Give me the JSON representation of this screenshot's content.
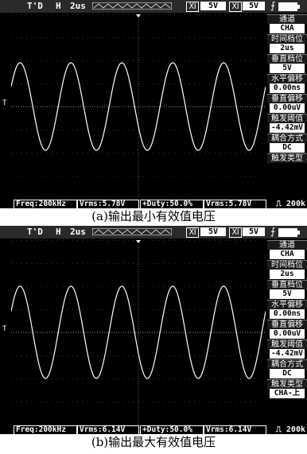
{
  "panels": [
    {
      "topbar": {
        "mode": "T'D",
        "h_label": "H",
        "timebase": "2us",
        "ch1_label": "Ⅺ",
        "ch1_value": "5V",
        "ch2_label": "Ⅺ",
        "ch2_value": "5V"
      },
      "side_menu": [
        {
          "header": "通道",
          "value": "CHA"
        },
        {
          "header": "时间档位",
          "value": "2us"
        },
        {
          "header": "垂直档位",
          "value": "5V"
        },
        {
          "header": "水平偏移",
          "value": "0.00ns"
        },
        {
          "header": "垂直偏移",
          "value": "0.00uV"
        },
        {
          "header": "触发阈值",
          "value": "-4.42mV"
        },
        {
          "header": "耦合方式",
          "value": "DC"
        },
        {
          "header": "触发类型",
          "value": ""
        }
      ],
      "bottombar": {
        "freq": "Freq:200kHz",
        "vrms": "Vrms:5.78V",
        "duty": "+Duty:50.0%",
        "vrms2": "Vrms:5.78V",
        "right": "⎍ 200k"
      },
      "caption": "(a)输出最小有效值电压",
      "wave": {
        "periods": 5,
        "amplitude_divisions": 1.9
      }
    },
    {
      "topbar": {
        "mode": "T'D",
        "h_label": "H",
        "timebase": "2us",
        "ch1_label": "Ⅺ",
        "ch1_value": "5V",
        "ch2_label": "Ⅺ",
        "ch2_value": "5V"
      },
      "side_menu": [
        {
          "header": "通道",
          "value": "CHA"
        },
        {
          "header": "时间档位",
          "value": "2us"
        },
        {
          "header": "垂直档位",
          "value": "5V"
        },
        {
          "header": "水平偏移",
          "value": "0.00ns"
        },
        {
          "header": "垂直偏移",
          "value": "0.00uV"
        },
        {
          "header": "触发阈值",
          "value": "-4.42mV"
        },
        {
          "header": "耦合方式",
          "value": "DC"
        },
        {
          "header": "触发类型",
          "value": "CHA-上"
        }
      ],
      "bottombar": {
        "freq": "Freq:200kHz",
        "vrms": "Vrms:6.14V",
        "duty": "+Duty:50.0%",
        "vrms2": "Vrms:6.14V",
        "right": "⎍ 200k"
      },
      "caption": "(b)输出最大有效值电压",
      "wave": {
        "periods": 5,
        "amplitude_divisions": 2.0
      }
    }
  ]
}
